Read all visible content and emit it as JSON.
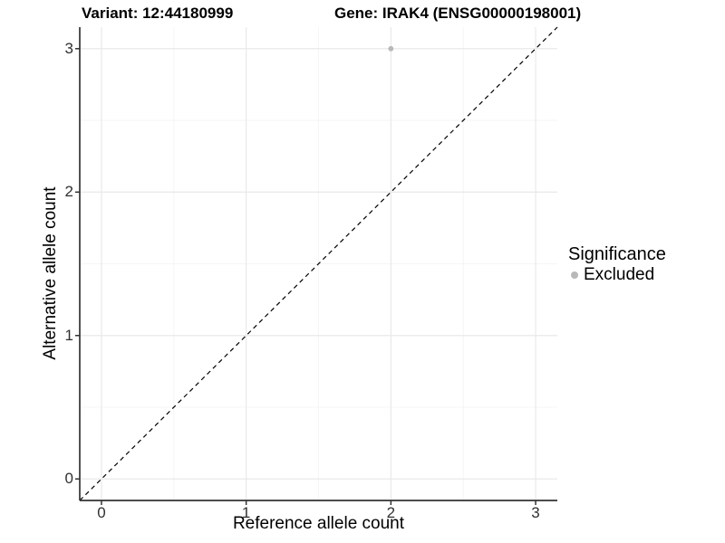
{
  "title": {
    "variant": "Variant: 12:44180999",
    "gene": "Gene: IRAK4 (ENSG00000198001)"
  },
  "chart_data": {
    "type": "scatter",
    "title_left": "Variant: 12:44180999",
    "title_right": "Gene: IRAK4 (ENSG00000198001)",
    "xlabel": "Reference allele count",
    "ylabel": "Alternative allele count",
    "xlim": [
      -0.15,
      3.15
    ],
    "ylim": [
      -0.15,
      3.15
    ],
    "x_ticks": [
      0,
      1,
      2,
      3
    ],
    "y_ticks": [
      0,
      1,
      2,
      3
    ],
    "x_minor_ticks": [
      0.5,
      1.5,
      2.5
    ],
    "y_minor_ticks": [
      0.5,
      1.5,
      2.5
    ],
    "grid": true,
    "points": [
      {
        "x": 2,
        "y": 3,
        "series": "Excluded"
      }
    ],
    "reference_line": {
      "type": "diagonal",
      "style": "dashed",
      "from": [
        -0.15,
        -0.15
      ],
      "to": [
        3.15,
        3.15
      ]
    },
    "legend": {
      "title": "Significance",
      "position": "right",
      "entries": [
        {
          "label": "Excluded",
          "color": "#b8b8b8",
          "marker": "circle"
        }
      ]
    },
    "colors": {
      "point": "#b8b8b8",
      "grid_major": "#e9e9e9",
      "grid_minor": "#f5f5f5",
      "axis": "#333333",
      "reference_line": "#000000",
      "background": "#ffffff"
    }
  }
}
